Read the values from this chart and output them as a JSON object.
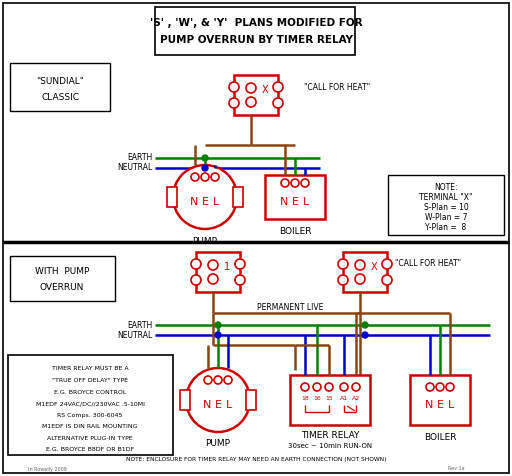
{
  "title_line1": "'S' , 'W', & 'Y'  PLANS MODIFIED FOR",
  "title_line2": "PUMP OVERRUN BY TIMER RELAY",
  "bg_color": "#ffffff",
  "red": "#cc0000",
  "green": "#008000",
  "blue": "#0000cc",
  "brown": "#8B4513",
  "black": "#000000",
  "gray": "#666666",
  "note_top": [
    "NOTE:",
    "TERMINAL \"X\"",
    "S-Plan = 10",
    "W-Plan = 7",
    "Y-Plan =  8"
  ],
  "note_bottom": [
    "TIMER RELAY MUST BE A",
    "\"TRUE OFF DELAY\" TYPE",
    "E.G. BROYCE CONTROL",
    "M1EDF 24VAC/DC//230VAC .5-10MI",
    "RS Comps. 300-6045",
    "M1EDF IS DIN RAIL MOUNTING",
    "ALTERNATIVE PLUG-IN TYPE",
    "E.G. BROYCE B8DF OR B1DF"
  ],
  "bottom_note": "NOTE: ENCLOSURE FOR TIMER RELAY MAY NEED AN EARTH CONNECTION (NOT SHOWN)"
}
